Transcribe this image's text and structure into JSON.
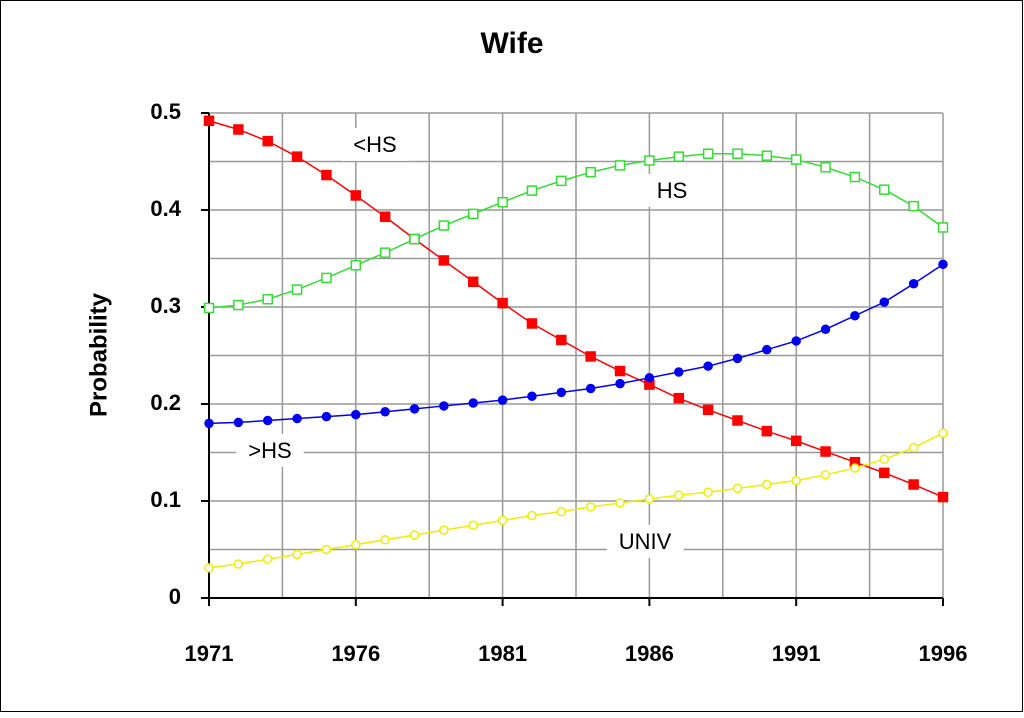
{
  "chart_data": {
    "type": "line",
    "title": "Wife",
    "y_label": "Probability",
    "x": [
      1971,
      1972,
      1973,
      1974,
      1975,
      1976,
      1977,
      1978,
      1979,
      1980,
      1981,
      1982,
      1983,
      1984,
      1985,
      1986,
      1987,
      1988,
      1989,
      1990,
      1991,
      1992,
      1993,
      1994,
      1995,
      1996
    ],
    "series": [
      {
        "name": "<HS",
        "color": "#ff0000",
        "marker": "filled-square",
        "values": [
          0.492,
          0.483,
          0.471,
          0.455,
          0.436,
          0.415,
          0.393,
          0.37,
          0.348,
          0.326,
          0.304,
          0.283,
          0.266,
          0.249,
          0.234,
          0.22,
          0.206,
          0.194,
          0.183,
          0.172,
          0.162,
          0.151,
          0.14,
          0.129,
          0.117,
          0.104
        ]
      },
      {
        "name": "HS",
        "color": "#33dd33",
        "marker": "open-square",
        "values": [
          0.299,
          0.302,
          0.308,
          0.318,
          0.33,
          0.343,
          0.356,
          0.37,
          0.384,
          0.396,
          0.408,
          0.42,
          0.43,
          0.439,
          0.446,
          0.451,
          0.455,
          0.458,
          0.458,
          0.456,
          0.452,
          0.444,
          0.434,
          0.421,
          0.404,
          0.382
        ]
      },
      {
        "name": ">HS",
        "color": "#0000ee",
        "marker": "filled-circle",
        "values": [
          0.18,
          0.181,
          0.183,
          0.185,
          0.187,
          0.189,
          0.192,
          0.195,
          0.198,
          0.201,
          0.204,
          0.208,
          0.212,
          0.216,
          0.221,
          0.227,
          0.233,
          0.239,
          0.247,
          0.256,
          0.265,
          0.277,
          0.291,
          0.305,
          0.324,
          0.344
        ]
      },
      {
        "name": "UNIV",
        "color": "#eeee00",
        "marker": "open-circle",
        "values": [
          0.031,
          0.035,
          0.04,
          0.045,
          0.05,
          0.055,
          0.06,
          0.065,
          0.07,
          0.075,
          0.08,
          0.085,
          0.089,
          0.094,
          0.098,
          0.102,
          0.106,
          0.109,
          0.113,
          0.117,
          0.121,
          0.127,
          0.134,
          0.143,
          0.155,
          0.17
        ]
      }
    ],
    "xlim": [
      1971,
      1996
    ],
    "xticks": [
      1971,
      1976,
      1981,
      1986,
      1991,
      1996
    ],
    "x_minor_grid": [
      1973.5,
      1978.5,
      1983.5,
      1988.5,
      1993.5
    ],
    "ylim": [
      0,
      0.5
    ],
    "yticks": [
      0,
      0.1,
      0.2,
      0.3,
      0.4,
      0.5
    ],
    "y_minor_grid": [
      0.05,
      0.15,
      0.25,
      0.35,
      0.45
    ],
    "grid": true
  }
}
